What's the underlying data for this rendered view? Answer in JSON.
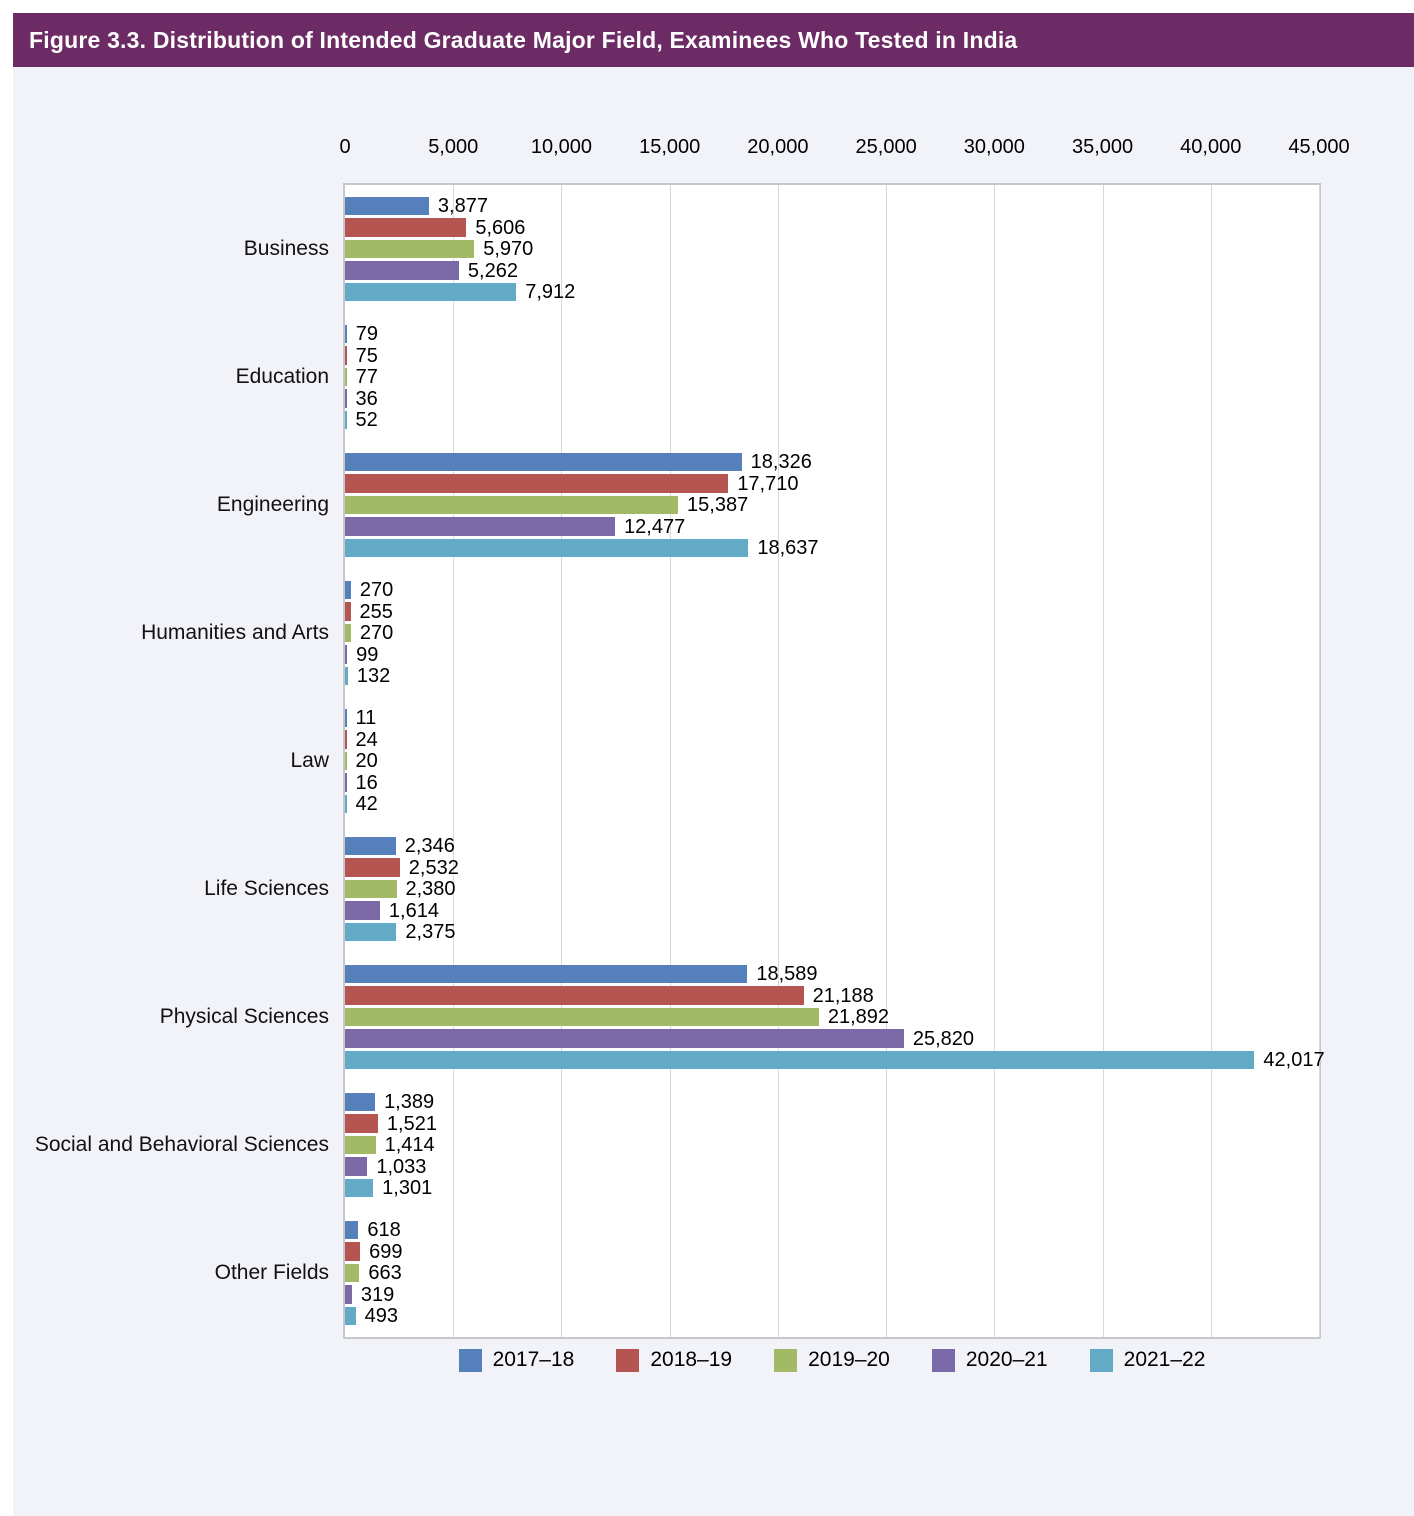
{
  "header": {
    "title": "Figure 3.3. Distribution of Intended Graduate Major Field, Examinees Who Tested in India",
    "background_color": "#6C2B64",
    "text_color": "#FFFFFF"
  },
  "colors": {
    "page_background": "#FFFFFF",
    "content_background": "#F2F3F9",
    "plot_background": "#FFFFFF",
    "plot_border": "#C6C7CB",
    "gridline": "#D8D8DA",
    "text": "#000000"
  },
  "chart_data": {
    "type": "bar",
    "orientation": "horizontal",
    "title": "Figure 3.3. Distribution of Intended Graduate Major Field, Examinees Who Tested in India",
    "xlabel": "",
    "ylabel": "",
    "grid": true,
    "legend_position": "bottom",
    "x_axis": {
      "position": "top",
      "min": 0,
      "max": 45000,
      "tick_interval": 5000,
      "tick_labels": [
        "0",
        "5,000",
        "10,000",
        "15,000",
        "20,000",
        "25,000",
        "30,000",
        "35,000",
        "40,000",
        "45,000"
      ]
    },
    "categories": [
      "Business",
      "Education",
      "Engineering",
      "Humanities and Arts",
      "Law",
      "Life Sciences",
      "Physical Sciences",
      "Social and Behavioral Sciences",
      "Other Fields"
    ],
    "series": [
      {
        "name": "2017–18",
        "color": "#5580BB",
        "values": [
          3877,
          79,
          18326,
          270,
          11,
          2346,
          18589,
          1389,
          618
        ]
      },
      {
        "name": "2018–19",
        "color": "#B45551",
        "values": [
          5606,
          75,
          17710,
          255,
          24,
          2532,
          21188,
          1521,
          699
        ]
      },
      {
        "name": "2019–20",
        "color": "#A2BA66",
        "values": [
          5970,
          77,
          15387,
          270,
          20,
          2380,
          21892,
          1414,
          663
        ]
      },
      {
        "name": "2020–21",
        "color": "#7B68A6",
        "values": [
          5262,
          36,
          12477,
          99,
          16,
          1614,
          25820,
          1033,
          319
        ]
      },
      {
        "name": "2021–22",
        "color": "#62AAC5",
        "values": [
          7912,
          52,
          18637,
          132,
          42,
          2375,
          42017,
          1301,
          493
        ]
      }
    ],
    "value_label_format": "thousands-comma"
  }
}
